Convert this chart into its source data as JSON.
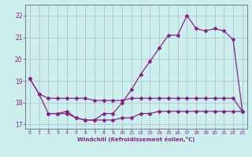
{
  "title": "",
  "xlabel": "Windchill (Refroidissement éolien,°C)",
  "ylabel": "",
  "background_color": "#cceeed",
  "grid_color": "#aabbcc",
  "line_color": "#882288",
  "xlim": [
    -0.5,
    23.5
  ],
  "ylim": [
    16.8,
    22.5
  ],
  "xticks": [
    0,
    1,
    2,
    3,
    4,
    5,
    6,
    7,
    8,
    9,
    10,
    11,
    12,
    13,
    14,
    15,
    16,
    17,
    18,
    19,
    20,
    21,
    22,
    23
  ],
  "yticks": [
    17,
    18,
    19,
    20,
    21,
    22
  ],
  "line1_x": [
    0,
    1,
    2,
    3,
    4,
    5,
    6,
    7,
    8,
    9,
    10,
    11,
    12,
    13,
    14,
    15,
    16,
    17,
    18,
    19,
    20,
    21,
    22,
    23
  ],
  "line1_y": [
    19.1,
    18.4,
    18.2,
    18.2,
    18.2,
    18.2,
    18.2,
    18.1,
    18.1,
    18.1,
    18.1,
    18.2,
    18.2,
    18.2,
    18.2,
    18.2,
    18.2,
    18.2,
    18.2,
    18.2,
    18.2,
    18.2,
    18.2,
    17.6
  ],
  "line2_x": [
    2,
    3,
    4,
    5,
    6,
    7,
    8,
    9,
    10,
    11,
    12,
    13,
    14,
    15,
    16,
    17,
    18,
    19,
    20,
    21,
    22,
    23
  ],
  "line2_y": [
    17.5,
    17.5,
    17.6,
    17.3,
    17.2,
    17.2,
    17.2,
    17.2,
    17.3,
    17.3,
    17.5,
    17.5,
    17.6,
    17.6,
    17.6,
    17.6,
    17.6,
    17.6,
    17.6,
    17.6,
    17.6,
    17.6
  ],
  "line3_x": [
    0,
    1,
    2,
    3,
    4,
    5,
    6,
    7,
    8,
    9,
    10,
    11,
    12,
    13,
    14,
    15,
    16,
    17,
    18,
    19,
    20,
    21,
    22,
    23
  ],
  "line3_y": [
    19.1,
    18.4,
    17.5,
    17.5,
    17.5,
    17.3,
    17.2,
    17.2,
    17.5,
    17.5,
    18.0,
    18.6,
    19.3,
    19.9,
    20.5,
    21.1,
    21.1,
    22.0,
    21.4,
    21.3,
    21.4,
    21.3,
    20.9,
    17.6
  ],
  "marker": "D",
  "marker_size": 2.0,
  "linewidth": 0.9
}
